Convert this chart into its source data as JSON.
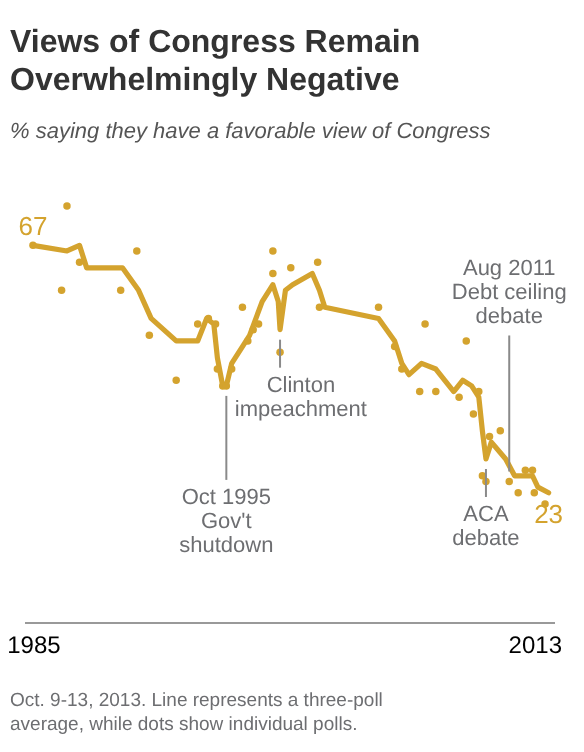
{
  "chart_data": {
    "type": "line",
    "title": "Views of Congress Remain\nOverwhelmingly Negative",
    "subtitle": "% saying they have a favorable view of Congress",
    "xlim": [
      1984.5,
      2014.1
    ],
    "xticks": [
      1985,
      2013
    ],
    "tick_labels": "x",
    "series": [
      {
        "color": "#d4a32e",
        "line_style": "solid",
        "x": [
          1985.0,
          1986.9,
          1987.6,
          1988.0,
          1990.0,
          1990.9,
          1991.6,
          1993.0,
          1994.2,
          1994.7,
          1995.1,
          1995.3,
          1995.6,
          1995.8,
          1996.1,
          1996.7,
          1997.1,
          1997.8,
          1998.4,
          1998.7,
          1998.8,
          1999.1,
          1999.5,
          2000.6,
          2001.0,
          2001.3,
          2004.3,
          2005.2,
          2005.6,
          2006.0,
          2006.7,
          2007.5,
          2008.5,
          2009.0,
          2009.5,
          2009.9,
          2010.1,
          2010.3,
          2010.6,
          2011.4,
          2011.9,
          2012.3,
          2012.9,
          2013.2,
          2013.8
        ],
        "values": [
          67,
          66,
          67,
          63,
          63,
          59,
          54,
          50,
          50,
          54,
          53,
          47,
          42,
          42,
          46,
          49,
          51,
          57,
          60,
          57,
          52,
          59,
          60,
          62,
          59,
          56,
          54,
          50,
          46,
          44,
          46,
          45,
          41,
          43,
          42,
          40,
          34,
          29,
          32,
          29,
          26,
          26,
          26,
          24,
          23
        ],
        "value_labels": [
          "67",
          null,
          null,
          null,
          null,
          null,
          null,
          null,
          null,
          null,
          null,
          null,
          null,
          null,
          null,
          null,
          null,
          null,
          null,
          null,
          null,
          null,
          null,
          null,
          null,
          null,
          null,
          null,
          null,
          null,
          null,
          null,
          null,
          null,
          null,
          null,
          null,
          null,
          null,
          null,
          null,
          null,
          null,
          null,
          "23"
        ]
      },
      {
        "type": "scatter",
        "color": "#d4a32e",
        "marker": "circle",
        "x": [
          1985.0,
          1986.9,
          1986.6,
          1987.6,
          1989.9,
          1990.8,
          1991.5,
          1993.0,
          1994.2,
          1994.8,
          1995.2,
          1995.3,
          1995.6,
          1995.8,
          1996.1,
          1996.7,
          1997.0,
          1997.3,
          1997.6,
          1998.4,
          1998.4,
          1998.8,
          1999.4,
          2000.9,
          2001.0,
          2004.3,
          2005.2,
          2005.6,
          2006.6,
          2006.9,
          2007.5,
          2008.8,
          2009.2,
          2009.6,
          2009.9,
          2010.1,
          2010.3,
          2010.5,
          2011.1,
          2011.6,
          2012.1,
          2012.5,
          2012.9,
          2013.0,
          2013.6
        ],
        "values": [
          67,
          74,
          59,
          64,
          59,
          66,
          51,
          43,
          53,
          54,
          53,
          45,
          42,
          42,
          45,
          56,
          50,
          52,
          53,
          66,
          62,
          48,
          63,
          64,
          56,
          56,
          49,
          45,
          41,
          53,
          41,
          40,
          50,
          37,
          41,
          26,
          25,
          33,
          34,
          25,
          23,
          27,
          27,
          23,
          21
        ]
      }
    ],
    "annotations": [
      {
        "text": "Oct 1995\nGov't\nshutdown",
        "x": 1995.8,
        "y": 42
      },
      {
        "text": "Clinton\nimpeachment",
        "x": 1998.8,
        "y": 52
      },
      {
        "text": "ACA\ndebate",
        "x": 2010.3,
        "y": 29
      },
      {
        "text": "Aug 2011\nDebt ceiling\ndebate",
        "x": 2011.6,
        "y": 25
      },
      "Oct. 9-13, 2013. Line represents a three-poll average, while dots show individual polls."
    ]
  }
}
